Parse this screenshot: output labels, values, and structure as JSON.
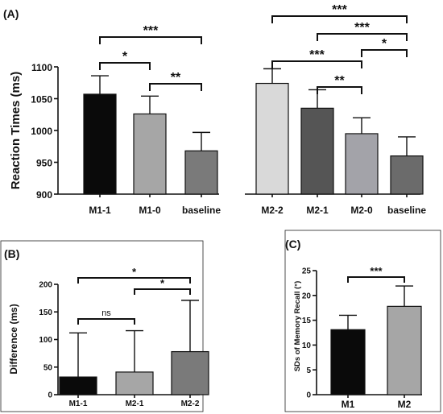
{
  "chart_data": [
    {
      "panel": "(A)",
      "type": "bar",
      "ylabel": "Reaction Times (ms)",
      "ylim": [
        900,
        1100
      ],
      "yticks": [
        900,
        950,
        1000,
        1050,
        1100
      ],
      "groups": [
        {
          "categories": [
            "M1-1",
            "M1-0",
            "baseline"
          ],
          "values": [
            1057,
            1026,
            968
          ],
          "errors": [
            29,
            28,
            29
          ],
          "colors": [
            "#0a0a0a",
            "#a6a6a6",
            "#7a7a7a"
          ],
          "significance": [
            {
              "from": 0,
              "to": 2,
              "label": "***"
            },
            {
              "from": 0,
              "to": 1,
              "label": "*"
            },
            {
              "from": 1,
              "to": 2,
              "label": "**"
            }
          ]
        },
        {
          "categories": [
            "M2-2",
            "M2-1",
            "M2-0",
            "baseline"
          ],
          "values": [
            1074,
            1035,
            995,
            960
          ],
          "errors": [
            23,
            29,
            25,
            30
          ],
          "colors": [
            "#d9d9d9",
            "#555555",
            "#a3a3a9",
            "#6b6b6b"
          ],
          "significance": [
            {
              "from": 0,
              "to": 3,
              "label": "***"
            },
            {
              "from": 1,
              "to": 3,
              "label": "***"
            },
            {
              "from": 2,
              "to": 3,
              "label": "*"
            },
            {
              "from": 0,
              "to": 2,
              "label": "***"
            },
            {
              "from": 1,
              "to": 2,
              "label": "**"
            }
          ]
        }
      ]
    },
    {
      "panel": "(B)",
      "type": "bar",
      "ylabel": "Difference (ms)",
      "ylim": [
        0,
        200
      ],
      "yticks": [
        0,
        50,
        100,
        150,
        200
      ],
      "categories": [
        "M1-1",
        "M2-1",
        "M2-2"
      ],
      "values": [
        32,
        41,
        78
      ],
      "errors": [
        80,
        75,
        93
      ],
      "colors": [
        "#0a0a0a",
        "#a6a6a6",
        "#7a7a7a"
      ],
      "significance": [
        {
          "from": 0,
          "to": 2,
          "label": "*"
        },
        {
          "from": 0,
          "to": 1,
          "label": "ns"
        },
        {
          "from": 1,
          "to": 2,
          "label": "*"
        }
      ]
    },
    {
      "panel": "(C)",
      "type": "bar",
      "ylabel": "SDs of Memory Recall (°)",
      "ylim": [
        0,
        25
      ],
      "yticks": [
        0,
        5,
        10,
        15,
        20,
        25
      ],
      "categories": [
        "M1",
        "M2"
      ],
      "values": [
        13.1,
        17.8
      ],
      "errors": [
        2.9,
        4.1
      ],
      "colors": [
        "#0a0a0a",
        "#a6a6a6"
      ],
      "significance": [
        {
          "from": 0,
          "to": 1,
          "label": "***"
        }
      ]
    }
  ]
}
